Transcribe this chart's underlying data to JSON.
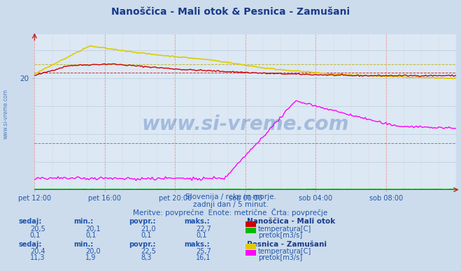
{
  "title": "Nanoščica - Mali otok & Pesnica - Zamušani",
  "subtitle1": "Slovenija / reke in morje.",
  "subtitle2": "zadnji dan / 5 minut.",
  "subtitle3": "Meritve: povprečne  Enote: metrične  Črta: povprečje",
  "xlabel_ticks": [
    "pet 12:00",
    "pet 16:00",
    "pet 20:00",
    "sob 00:00",
    "sob 04:00",
    "sob 08:00"
  ],
  "background_color": "#ccdcec",
  "plot_bg_color": "#dce8f4",
  "title_color": "#1a3a8a",
  "text_color": "#2255aa",
  "ylim": [
    0,
    28
  ],
  "ytick_val": 20,
  "num_points": 288,
  "station1_name": "Nanoščica - Mali otok",
  "station2_name": "Pesnica - Zamušani",
  "color_nano_temp": "#cc0000",
  "color_nano_flow": "#00bb00",
  "color_pesnica_temp": "#ddcc00",
  "color_pesnica_flow": "#ff00ff",
  "avg1_temp": 21.0,
  "avg2_temp": 22.5,
  "avg2_flow": 8.3,
  "stats1_sedaj": "20,5",
  "stats1_min": "20,1",
  "stats1_povpr": "21,0",
  "stats1_maks": "22,7",
  "stats1_label": "temperatura[C]",
  "stats1_color": "#cc0000",
  "stats2_sedaj": "0,1",
  "stats2_min": "0,1",
  "stats2_povpr": "0,1",
  "stats2_maks": "0,1",
  "stats2_label": "pretok[m3/s]",
  "stats2_color": "#00bb00",
  "stats3_sedaj": "20,4",
  "stats3_min": "20,0",
  "stats3_povpr": "22,5",
  "stats3_maks": "25,7",
  "stats3_label": "temperatura[C]",
  "stats3_color": "#ddcc00",
  "stats4_sedaj": "11,3",
  "stats4_min": "1,9",
  "stats4_povpr": "8,3",
  "stats4_maks": "16,1",
  "stats4_label": "pretok[m3/s]",
  "stats4_color": "#ff00ff",
  "watermark": "www.si-vreme.com",
  "watermark_color": "#2255aa"
}
